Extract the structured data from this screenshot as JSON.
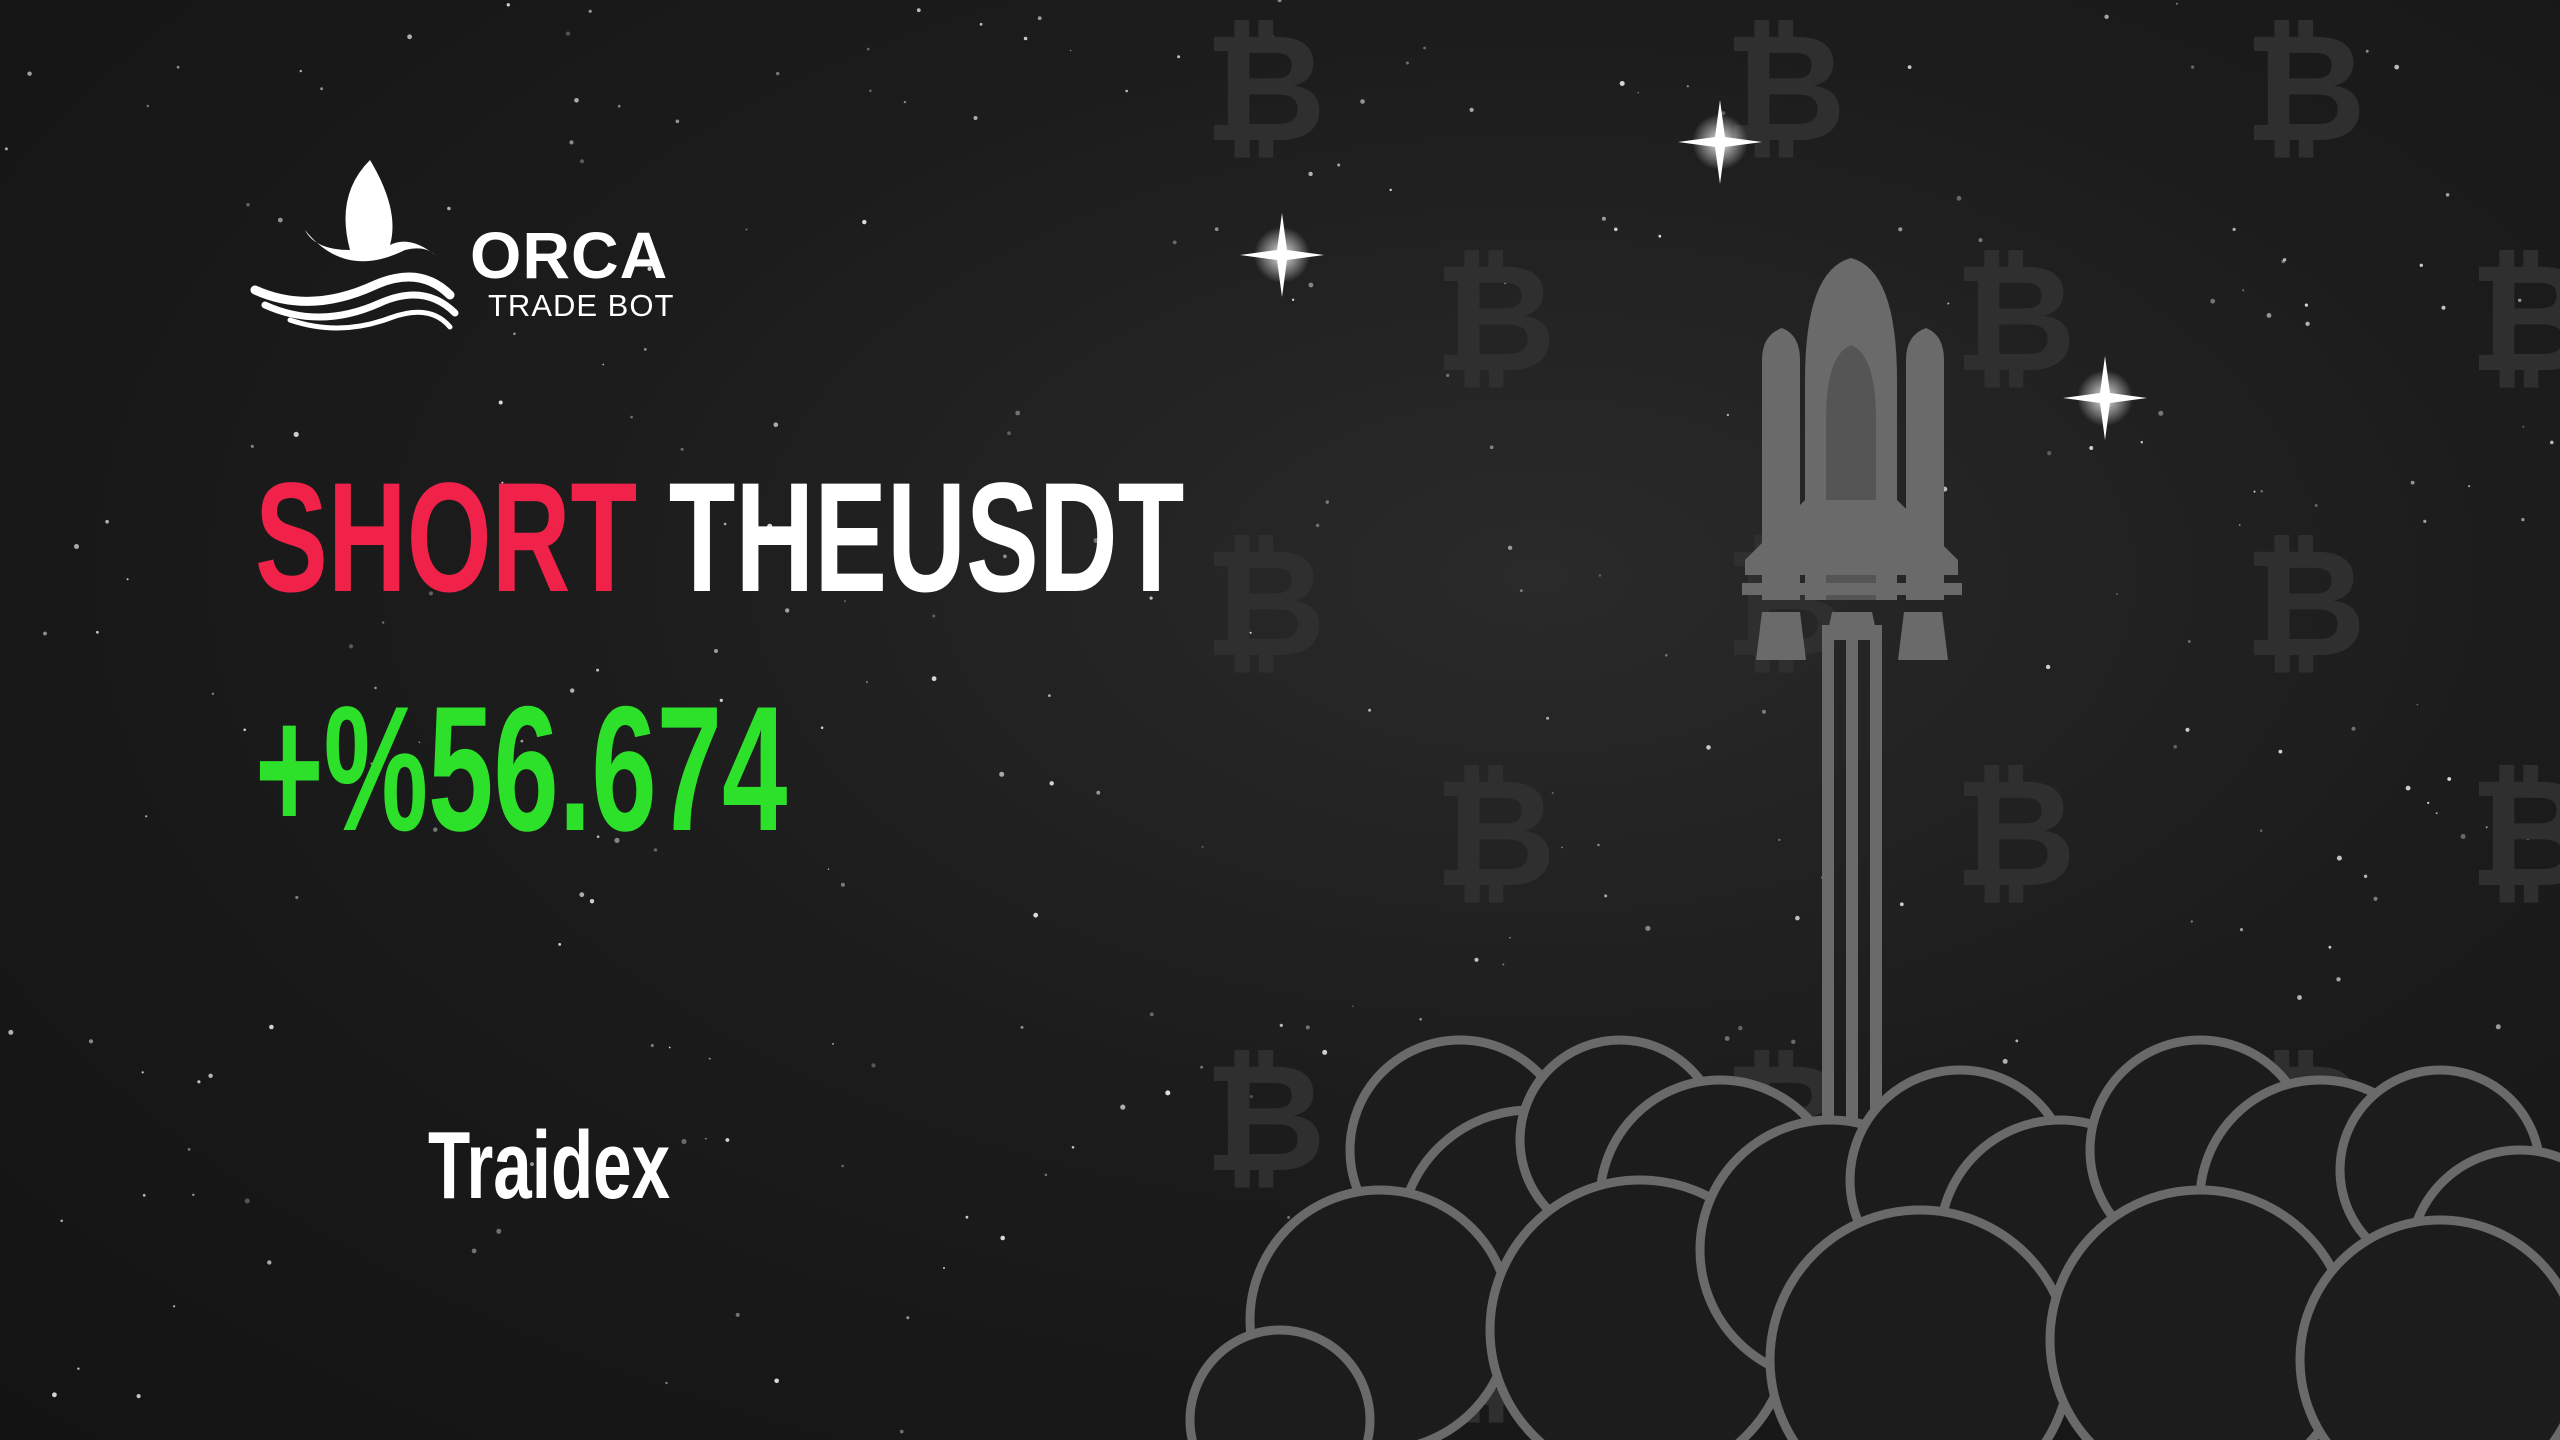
{
  "brand": {
    "name": "ORCA",
    "tagline": "TRADE BOT"
  },
  "signal": {
    "side": "SHORT",
    "pair": "THEUSDT",
    "pnl": "+%56.674"
  },
  "exchange": "Traidex",
  "colors": {
    "background": "#1c1c1c",
    "side_short": "#f0224a",
    "pnl_positive": "#2de02a",
    "text": "#ffffff",
    "illustration": "#6a6a6a"
  },
  "decor": {
    "background_icon": "bitcoin-icon",
    "illustration": "rocket-launch-icon",
    "sparkle": "star-icon",
    "logo_icon": "whale-tail-icon"
  }
}
